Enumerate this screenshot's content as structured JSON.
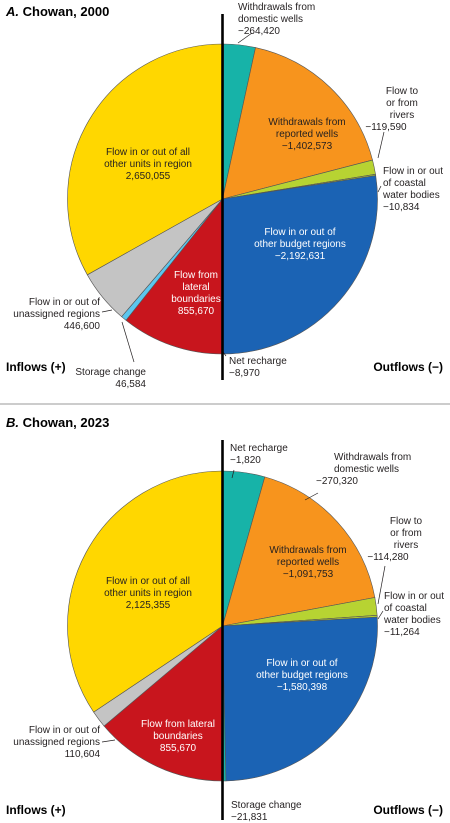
{
  "chart_data": [
    {
      "type": "pie",
      "title_letter": "A.",
      "title": "Chowan, 2000",
      "inflows_label": "Inflows (+)",
      "outflows_label": "Outflows (−)",
      "slices": [
        {
          "key": "net",
          "side": "outflow",
          "label": [
            "Net recharge"
          ],
          "value_text": "−8,970",
          "value": 8970,
          "color": "#17b3a8"
        },
        {
          "key": "dom",
          "side": "outflow",
          "label": [
            "Withdrawals from",
            "domestic wells"
          ],
          "value_text": "−264,420",
          "value": 264420,
          "color": "#17b3a8"
        },
        {
          "key": "rep",
          "side": "outflow",
          "label": [
            "Withdrawals from",
            "reported wells"
          ],
          "value_text": "−1,402,573",
          "value": 1402573,
          "color": "#f7941d"
        },
        {
          "key": "riv",
          "side": "outflow",
          "label": [
            "Flow to",
            "or from",
            "rivers"
          ],
          "value_text": "−119,590",
          "value": 119590,
          "color": "#b7d332"
        },
        {
          "key": "coast",
          "side": "outflow",
          "label": [
            "Flow in or out",
            "of coastal",
            "water bodies"
          ],
          "value_text": "−10,834",
          "value": 10834,
          "color": "#b7d332"
        },
        {
          "key": "budget",
          "side": "outflow",
          "label": [
            "Flow in or out of",
            "other budget regions"
          ],
          "value_text": "−2,192,631",
          "value": 2192631,
          "color": "#1b63b4"
        },
        {
          "key": "lat",
          "side": "inflow",
          "label": [
            "Flow from",
            "lateral",
            "boundaries"
          ],
          "value_text": "855,670",
          "value": 855670,
          "color": "#c8151d"
        },
        {
          "key": "stor",
          "side": "inflow",
          "label": [
            "Storage change"
          ],
          "value_text": "46,584",
          "value": 46584,
          "color": "#5cc6ee"
        },
        {
          "key": "unas",
          "side": "inflow",
          "label": [
            "Flow in or out of",
            "unassigned regions"
          ],
          "value_text": "446,600",
          "value": 446600,
          "color": "#c4c4c4"
        },
        {
          "key": "other",
          "side": "inflow",
          "label": [
            "Flow in or out of all",
            "other units in region"
          ],
          "value_text": "2,650,055",
          "value": 2650055,
          "color": "#ffd700"
        }
      ]
    },
    {
      "type": "pie",
      "title_letter": "B.",
      "title": "Chowan, 2023",
      "inflows_label": "Inflows (+)",
      "outflows_label": "Outflows (−)",
      "slices": [
        {
          "key": "net",
          "side": "outflow",
          "label": [
            "Net recharge"
          ],
          "value_text": "−1,820",
          "value": 1820,
          "color": "#17b3a8"
        },
        {
          "key": "dom",
          "side": "outflow",
          "label": [
            "Withdrawals from",
            "domestic wells"
          ],
          "value_text": "−270,320",
          "value": 270320,
          "color": "#17b3a8"
        },
        {
          "key": "rep",
          "side": "outflow",
          "label": [
            "Withdrawals from",
            "reported wells"
          ],
          "value_text": "−1,091,753",
          "value": 1091753,
          "color": "#f7941d"
        },
        {
          "key": "riv",
          "side": "outflow",
          "label": [
            "Flow to",
            "or from",
            "rivers"
          ],
          "value_text": "−114,280",
          "value": 114280,
          "color": "#b7d332"
        },
        {
          "key": "coast",
          "side": "outflow",
          "label": [
            "Flow in or out",
            "of coastal",
            "water bodies"
          ],
          "value_text": "−11,264",
          "value": 11264,
          "color": "#b7d332"
        },
        {
          "key": "budget",
          "side": "outflow",
          "label": [
            "Flow in or out of",
            "other budget regions"
          ],
          "value_text": "−1,580,398",
          "value": 1580398,
          "color": "#1b63b4"
        },
        {
          "key": "stor",
          "side": "outflow",
          "label": [
            "Storage change"
          ],
          "value_text": "−21,831",
          "value": 21831,
          "color": "#17b3a8"
        },
        {
          "key": "lat",
          "side": "inflow",
          "label": [
            "Flow from lateral",
            "boundaries"
          ],
          "value_text": "855,670",
          "value": 855670,
          "color": "#c8151d"
        },
        {
          "key": "unas",
          "side": "inflow",
          "label": [
            "Flow in or out of",
            "unassigned regions"
          ],
          "value_text": "110,604",
          "value": 110604,
          "color": "#c4c4c4"
        },
        {
          "key": "other",
          "side": "inflow",
          "label": [
            "Flow in or out of all",
            "other units in region"
          ],
          "value_text": "2,125,355",
          "value": 2125355,
          "color": "#ffd700"
        }
      ]
    }
  ]
}
